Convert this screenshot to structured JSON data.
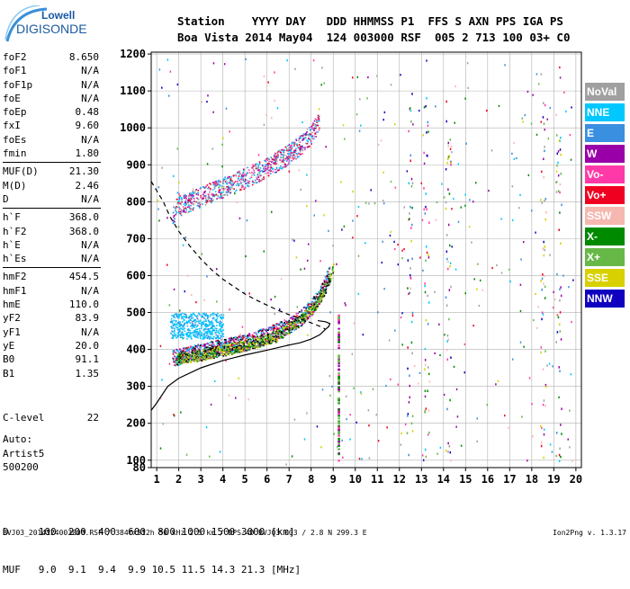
{
  "logo": {
    "line1": "Lowell",
    "line2": "DIGISONDE"
  },
  "header": {
    "labels": "Station    YYYY DAY   DDD HHMMSS P1  FFS S AXN PPS IGA PS",
    "values": "Boa Vista 2014 May04  124 003000 RSF  005 2 713 100 03+ C0"
  },
  "params": [
    {
      "name": "foF2",
      "value": "8.650"
    },
    {
      "name": "foF1",
      "value": "N/A"
    },
    {
      "name": "foF1p",
      "value": "N/A"
    },
    {
      "name": "foE",
      "value": "N/A"
    },
    {
      "name": "foEp",
      "value": "0.48"
    },
    {
      "name": "fxI",
      "value": "9.60"
    },
    {
      "name": "foEs",
      "value": "N/A"
    },
    {
      "name": "fmin",
      "value": "1.80"
    },
    {
      "name": "MUF(D)",
      "value": "21.30"
    },
    {
      "name": "M(D)",
      "value": "2.46"
    },
    {
      "name": "D",
      "value": "N/A"
    },
    {
      "name": "h`F",
      "value": "368.0"
    },
    {
      "name": "h`F2",
      "value": "368.0"
    },
    {
      "name": "h`E",
      "value": "N/A"
    },
    {
      "name": "h`Es",
      "value": "N/A"
    },
    {
      "name": "hmF2",
      "value": "454.5"
    },
    {
      "name": "hmF1",
      "value": "N/A"
    },
    {
      "name": "hmE",
      "value": "110.0"
    },
    {
      "name": "yF2",
      "value": "83.9"
    },
    {
      "name": "yF1",
      "value": "N/A"
    },
    {
      "name": "yE",
      "value": "20.0"
    },
    {
      "name": "B0",
      "value": "91.1"
    },
    {
      "name": "B1",
      "value": "1.35"
    }
  ],
  "clevel": {
    "name": "C-level",
    "value": "22"
  },
  "auto": {
    "line1": "Auto:",
    "line2": "Artist5",
    "line3": "500200"
  },
  "legend": [
    {
      "label": "NoVal",
      "bg": "#a0a0a0",
      "fg": "#ffffff"
    },
    {
      "label": "NNE",
      "bg": "#00c8ff",
      "fg": "#ffffff"
    },
    {
      "label": "E",
      "bg": "#3a8fe0",
      "fg": "#ffffff"
    },
    {
      "label": "W",
      "bg": "#9a00a8",
      "fg": "#ffffff"
    },
    {
      "label": "Vo-",
      "bg": "#ff3aa8",
      "fg": "#ffffff"
    },
    {
      "label": "Vo+",
      "bg": "#f00020",
      "fg": "#ffffff"
    },
    {
      "label": "SSW",
      "bg": "#f5b8b0",
      "fg": "#ffffff"
    },
    {
      "label": "X-",
      "bg": "#008a00",
      "fg": "#ffffff"
    },
    {
      "label": "X+",
      "bg": "#68b848",
      "fg": "#ffffff"
    },
    {
      "label": "SSE",
      "bg": "#d8d000",
      "fg": "#ffffff"
    },
    {
      "label": "NNW",
      "bg": "#1000c0",
      "fg": "#ffffff"
    }
  ],
  "bottom": {
    "line1": "D     100  200  400  600  800 1000 1500 3000 [km]",
    "line2": "MUF   9.0  9.1  9.4  9.9 10.5 11.5 14.3 21.3 [MHz]"
  },
  "footer": "BVJ03_2014124003000.RSF / 384fx512h 50 kHz 2.5 km / DPS-4D BVJ03 003 / 2.8 N 299.3 E",
  "version": "Ion2Png v. 1.3.17",
  "chart_data": {
    "type": "scatter",
    "xlim": [
      0.75,
      20.25
    ],
    "ylim": [
      80,
      1205
    ],
    "x_ticks": [
      1,
      2,
      3,
      4,
      5,
      6,
      7,
      8,
      9,
      10,
      11,
      12,
      13,
      14,
      15,
      16,
      17,
      18,
      19,
      20
    ],
    "y_ticks": [
      80,
      100,
      200,
      300,
      400,
      500,
      600,
      700,
      800,
      900,
      1000,
      1100,
      1200
    ],
    "grid": true,
    "profile_curve": {
      "x": [
        0.75,
        1.0,
        1.5,
        2.0,
        3.0,
        4.0,
        5.0,
        6.0,
        7.0,
        7.5,
        8.0,
        8.4,
        8.65,
        8.8,
        8.85,
        8.65,
        8.3
      ],
      "y": [
        235,
        255,
        300,
        322,
        350,
        370,
        385,
        398,
        412,
        418,
        428,
        440,
        454.5,
        462,
        470,
        475,
        478
      ]
    },
    "dashed_curve": {
      "x": [
        0.75,
        1.0,
        1.3,
        1.6,
        2.0,
        2.5,
        3.0,
        3.5,
        4.0,
        4.5,
        5.0,
        5.5,
        6.0,
        6.5,
        7.0,
        7.5,
        8.0,
        8.5,
        8.65
      ],
      "y": [
        855,
        830,
        800,
        760,
        720,
        680,
        645,
        615,
        590,
        570,
        550,
        534,
        520,
        506,
        494,
        483,
        472,
        460,
        454.5
      ]
    },
    "trace_o_upper": {
      "x": [
        1.7,
        2.0,
        3.0,
        4.0,
        5.0,
        6.0,
        7.0,
        7.5,
        8.0,
        8.35
      ],
      "y": [
        770,
        790,
        815,
        840,
        865,
        895,
        930,
        955,
        985,
        1020
      ]
    },
    "trace_o_lower": {
      "x": [
        1.7,
        2.0,
        3.0,
        4.0,
        5.0,
        6.0,
        7.0,
        7.5,
        8.0,
        8.5,
        8.8
      ],
      "y": [
        378,
        382,
        395,
        408,
        420,
        440,
        465,
        485,
        515,
        560,
        610
      ]
    },
    "trace_x_lower": {
      "x": [
        1.9,
        2.5,
        3.5,
        4.5,
        5.5,
        6.5,
        7.5,
        8.2,
        8.7,
        9.0
      ],
      "y": [
        375,
        380,
        392,
        405,
        420,
        440,
        480,
        525,
        575,
        620
      ]
    },
    "spread_upper": {
      "x": [
        1.6,
        4.0
      ],
      "y": [
        430,
        500
      ]
    },
    "vertical_echo": {
      "x": 9.25,
      "y": [
        100,
        500
      ]
    }
  }
}
